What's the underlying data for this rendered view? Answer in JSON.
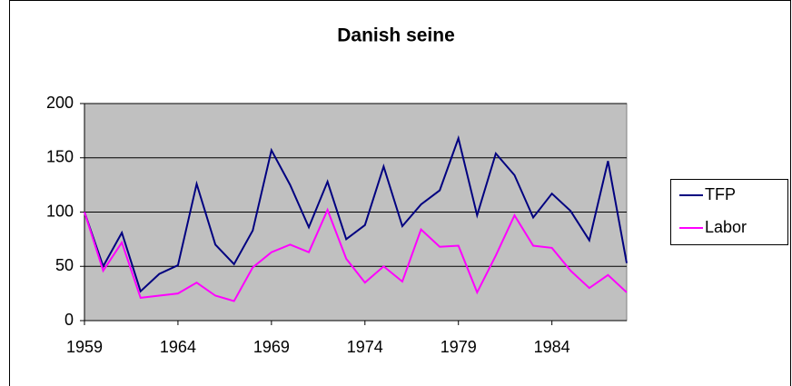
{
  "chart_data": {
    "type": "line",
    "title": "Danish seine",
    "x": [
      1959,
      1960,
      1961,
      1962,
      1963,
      1964,
      1965,
      1966,
      1967,
      1968,
      1969,
      1970,
      1971,
      1972,
      1973,
      1974,
      1975,
      1976,
      1977,
      1978,
      1979,
      1980,
      1981,
      1982,
      1983,
      1984,
      1985,
      1986,
      1987,
      1988
    ],
    "series": [
      {
        "name": "TFP",
        "color": "#000080",
        "values": [
          100,
          50,
          81,
          27,
          43,
          51,
          126,
          70,
          52,
          83,
          157,
          125,
          86,
          128,
          75,
          88,
          142,
          87,
          107,
          120,
          168,
          97,
          154,
          134,
          95,
          117,
          101,
          74,
          147,
          53
        ]
      },
      {
        "name": "Labor",
        "color": "#ff00ff",
        "values": [
          100,
          46,
          72,
          21,
          23,
          25,
          35,
          23,
          18,
          49,
          63,
          70,
          63,
          102,
          57,
          35,
          50,
          36,
          84,
          68,
          69,
          26,
          60,
          97,
          69,
          67,
          46,
          30,
          42,
          26
        ]
      }
    ],
    "xlim": [
      1959,
      1988
    ],
    "xticks": [
      1959,
      1964,
      1969,
      1974,
      1979,
      1984
    ],
    "ylim": [
      0,
      200
    ],
    "yticks": [
      0,
      50,
      100,
      150,
      200
    ],
    "grid": true,
    "legend": "right",
    "plot_background": "#c0c0c0"
  }
}
